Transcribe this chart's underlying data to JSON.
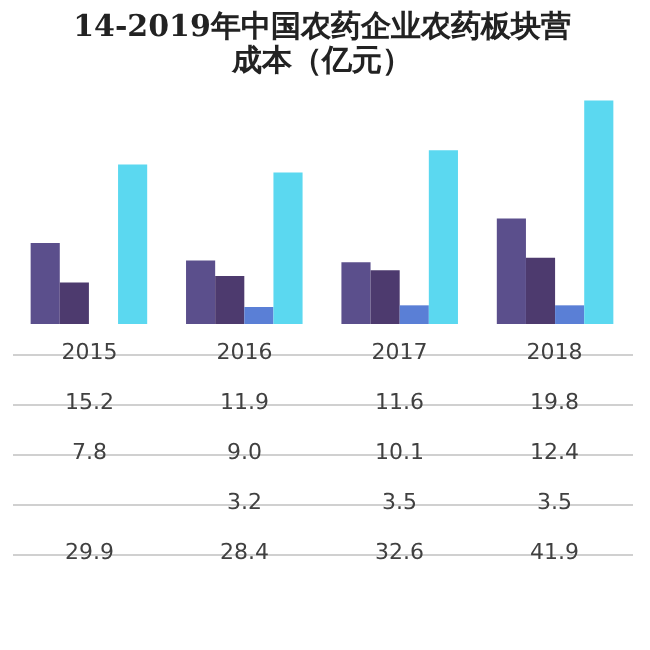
{
  "chart_data": {
    "type": "bar",
    "title": [
      "14-2019年中国农药企业农药板块营",
      "成本（亿元）"
    ],
    "categories": [
      "2015",
      "2016",
      "2017",
      "2018"
    ],
    "series": [
      {
        "color": "#5b4f8c",
        "values": [
          15.2,
          11.9,
          11.6,
          19.8
        ]
      },
      {
        "color": "#4d3a6e",
        "values": [
          7.8,
          9.0,
          10.1,
          12.4
        ],
        "value_labels": [
          "7.8",
          "9.0",
          "10.1",
          "12.4"
        ]
      },
      {
        "color": "#5a7fd6",
        "values": [
          null,
          3.2,
          3.5,
          3.5
        ]
      },
      {
        "color": "#5bd8f0",
        "values": [
          29.9,
          28.4,
          32.6,
          41.9
        ]
      }
    ],
    "data_labels": true,
    "legend": false
  }
}
